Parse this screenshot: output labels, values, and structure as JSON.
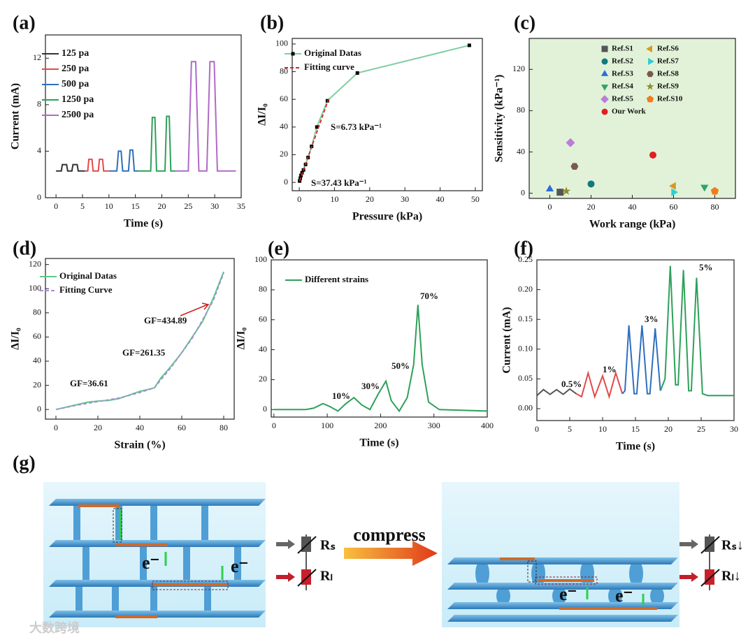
{
  "chart_data": [
    {
      "type": "line",
      "label": "(a)",
      "xlabel": "Time (s)",
      "ylabel": "Current (mA)",
      "xlim": [
        -2,
        35
      ],
      "xticks": [
        0,
        5,
        10,
        15,
        20,
        25,
        30,
        35
      ],
      "ylim": [
        0,
        14
      ],
      "yticks": [
        0,
        4,
        8,
        12
      ],
      "series": [
        {
          "name": "125 pa",
          "color": "#333333",
          "x": [
            0,
            1,
            1.2,
            2,
            2.2,
            3,
            3.2,
            4,
            4.2,
            5.5
          ],
          "values": [
            2.3,
            2.3,
            2.85,
            2.85,
            2.3,
            2.3,
            2.85,
            2.85,
            2.3,
            2.3
          ]
        },
        {
          "name": "250 pa",
          "color": "#e34a4a",
          "x": [
            5.5,
            6,
            6.2,
            6.8,
            7,
            8,
            8.2,
            8.8,
            9,
            10
          ],
          "values": [
            2.3,
            2.3,
            3.3,
            3.3,
            2.3,
            2.3,
            3.3,
            3.3,
            2.3,
            2.3
          ]
        },
        {
          "name": "500 pa",
          "color": "#2e6fbf",
          "x": [
            10,
            11.5,
            11.8,
            12.3,
            12.6,
            13.7,
            14,
            14.5,
            14.8,
            15.5
          ],
          "values": [
            2.3,
            2.3,
            4.0,
            4.0,
            2.3,
            2.3,
            4.1,
            4.1,
            2.3,
            2.3
          ]
        },
        {
          "name": "1250 pa",
          "color": "#2ea05a",
          "x": [
            15.5,
            17.9,
            18.2,
            18.7,
            19,
            20.6,
            20.9,
            21.4,
            21.7,
            22.5
          ],
          "values": [
            2.3,
            2.3,
            6.9,
            6.9,
            2.3,
            2.3,
            7.0,
            7.0,
            2.3,
            2.3
          ]
        },
        {
          "name": "2500 pa",
          "color": "#b06ac8",
          "x": [
            22.5,
            25,
            25.6,
            26.4,
            27,
            28.5,
            29.1,
            29.9,
            30.5,
            34
          ],
          "values": [
            2.3,
            2.3,
            11.7,
            11.7,
            2.3,
            2.3,
            11.7,
            11.7,
            2.3,
            2.3
          ]
        }
      ]
    },
    {
      "type": "line",
      "label": "(b)",
      "xlabel": "Pressure (kPa)",
      "ylabel": "ΔI/I₀",
      "xlim": [
        -2,
        52
      ],
      "xticks": [
        0,
        10,
        20,
        30,
        40,
        50
      ],
      "ylim": [
        -6,
        104
      ],
      "yticks": [
        0,
        20,
        40,
        60,
        80,
        100
      ],
      "annotations": [
        "S=6.73 kPa⁻¹",
        "S=37.43 kPa⁻¹"
      ],
      "series": [
        {
          "name": "Original Datas",
          "color": "#7fcf9f",
          "marker": "square",
          "marker_color": "#000000",
          "x": [
            0.1,
            0.3,
            0.5,
            0.8,
            1.2,
            1.8,
            2.5,
            3.5,
            5,
            8,
            16.5,
            48.3
          ],
          "values": [
            1,
            3,
            5,
            7,
            9,
            13,
            18,
            26,
            40,
            59,
            79,
            99
          ]
        },
        {
          "name": "Fitting curve",
          "color": "#d62728",
          "dash": true,
          "x": [
            0.1,
            8.3
          ],
          "values": [
            1,
            60
          ]
        }
      ]
    },
    {
      "type": "scatter",
      "label": "(c)",
      "xlabel": "Work range (kPa)",
      "ylabel": "Sensitivity (kPa⁻¹)",
      "plot_background": "#e2f2d9",
      "xlim": [
        -10,
        90
      ],
      "xticks": [
        0,
        20,
        40,
        60,
        80
      ],
      "ylim": [
        -5,
        150
      ],
      "yticks": [
        0,
        40,
        80,
        120
      ],
      "series": [
        {
          "name": "Ref.S1",
          "color": "#555555",
          "marker": "square",
          "x": [
            5
          ],
          "values": [
            1
          ]
        },
        {
          "name": "Ref.S2",
          "color": "#137a7a",
          "marker": "circle",
          "x": [
            20
          ],
          "values": [
            9
          ]
        },
        {
          "name": "Ref.S3",
          "color": "#2a6fd6",
          "marker": "triangle-up",
          "x": [
            0
          ],
          "values": [
            4
          ]
        },
        {
          "name": "Ref.S4",
          "color": "#2fa36b",
          "marker": "triangle-down",
          "x": [
            75
          ],
          "values": [
            6
          ]
        },
        {
          "name": "Ref.S5",
          "color": "#b77fd6",
          "marker": "diamond",
          "x": [
            10
          ],
          "values": [
            49
          ]
        },
        {
          "name": "Ref.S6",
          "color": "#d69a1f",
          "marker": "triangle-left",
          "x": [
            60
          ],
          "values": [
            7
          ]
        },
        {
          "name": "Ref.S7",
          "color": "#2ccfcf",
          "marker": "triangle-right",
          "x": [
            60
          ],
          "values": [
            1
          ]
        },
        {
          "name": "Ref.S8",
          "color": "#7a5a4a",
          "marker": "hexagon",
          "x": [
            12
          ],
          "values": [
            26
          ]
        },
        {
          "name": "Ref.S9",
          "color": "#8c8c2a",
          "marker": "star",
          "x": [
            8
          ],
          "values": [
            2
          ]
        },
        {
          "name": "Ref.S10",
          "color": "#f07c1a",
          "marker": "pentagon",
          "x": [
            80
          ],
          "values": [
            2
          ]
        },
        {
          "name": "Our Work",
          "color": "#e02020",
          "marker": "circle",
          "x": [
            50
          ],
          "values": [
            37
          ]
        }
      ]
    },
    {
      "type": "line",
      "label": "(d)",
      "xlabel": "Strain (%)",
      "ylabel": "ΔI/I₀",
      "xlim": [
        -5,
        85
      ],
      "xticks": [
        0,
        20,
        40,
        60,
        80
      ],
      "ylim": [
        -8,
        125
      ],
      "yticks": [
        0,
        20,
        40,
        60,
        80,
        100,
        120
      ],
      "annotations": [
        "GF=36.61",
        "GF=261.35",
        "GF=434.89"
      ],
      "series": [
        {
          "name": "Original Datas",
          "color": "#5cc98a",
          "x": [
            0,
            5,
            10,
            15,
            20,
            25,
            30,
            35,
            40,
            45,
            47,
            50,
            55,
            60,
            65,
            70,
            75,
            80
          ],
          "values": [
            0,
            2,
            4,
            6,
            7,
            7.5,
            9,
            12,
            15,
            17,
            18,
            26,
            36,
            47,
            60,
            73,
            92,
            114
          ]
        },
        {
          "name": "Fitting Curve",
          "color": "#a98ad6",
          "dash": true,
          "x": [
            0,
            10,
            20,
            30,
            40,
            47,
            55,
            65,
            75,
            80
          ],
          "values": [
            0,
            3.5,
            6.5,
            9.5,
            14,
            18,
            35,
            59,
            90,
            113
          ]
        }
      ]
    },
    {
      "type": "line",
      "label": "(e)",
      "xlabel": "Time (s)",
      "ylabel": "ΔI/I₀",
      "xlim": [
        -5,
        400
      ],
      "xticks": [
        0,
        100,
        200,
        300,
        400
      ],
      "ylim": [
        -5,
        100
      ],
      "yticks": [
        0,
        20,
        40,
        60,
        80,
        100
      ],
      "annotations": [
        "10%",
        "30%",
        "50%",
        "70%"
      ],
      "series": [
        {
          "name": "Different strains",
          "color": "#2ea05a",
          "x": [
            0,
            60,
            75,
            92,
            105,
            120,
            135,
            150,
            165,
            180,
            195,
            210,
            220,
            235,
            250,
            262,
            270,
            278,
            290,
            310,
            400
          ],
          "values": [
            0,
            0,
            1,
            4,
            2,
            -1,
            4,
            8,
            3,
            0,
            10,
            19,
            6,
            -1,
            8,
            30,
            70,
            30,
            5,
            0,
            -1
          ]
        }
      ]
    },
    {
      "type": "line",
      "label": "(f)",
      "xlabel": "Time (s)",
      "ylabel": "Current (mA)",
      "xlim": [
        0,
        30
      ],
      "xticks": [
        0,
        5,
        10,
        15,
        20,
        25,
        30
      ],
      "ylim": [
        -0.02,
        0.25
      ],
      "yticks": [
        {
          "value": 0,
          "label": "0.00"
        },
        {
          "value": 0.05,
          "label": "0.05"
        },
        {
          "value": 0.1,
          "label": "0.10"
        },
        {
          "value": 0.15,
          "label": "0.15"
        },
        {
          "value": 0.2,
          "label": "0.20"
        },
        {
          "value": 0.25,
          "label": "0.25"
        }
      ],
      "annotations": [
        "0.5%",
        "1%",
        "3%",
        "5%"
      ],
      "series": [
        {
          "color": "#555555",
          "x": [
            0,
            1,
            2,
            3,
            4,
            5,
            6
          ],
          "values": [
            0.022,
            0.032,
            0.024,
            0.032,
            0.024,
            0.033,
            0.025
          ]
        },
        {
          "color": "#e34a4a",
          "x": [
            6,
            6.8,
            7.8,
            8.8,
            10,
            11,
            12,
            13
          ],
          "values": [
            0.025,
            0.02,
            0.06,
            0.02,
            0.055,
            0.02,
            0.06,
            0.025
          ]
        },
        {
          "color": "#2e6fbf",
          "x": [
            13,
            13.4,
            14,
            14.8,
            15.2,
            16,
            16.8,
            17.2,
            18,
            18.8
          ],
          "values": [
            0.025,
            0.03,
            0.14,
            0.025,
            0.025,
            0.14,
            0.025,
            0.025,
            0.135,
            0.03
          ]
        },
        {
          "color": "#2ea05a",
          "x": [
            18.8,
            19.5,
            20.3,
            21.1,
            21.5,
            22.3,
            23.1,
            23.5,
            24.3,
            25.2,
            26,
            30
          ],
          "values": [
            0.03,
            0.05,
            0.24,
            0.04,
            0.04,
            0.233,
            0.03,
            0.03,
            0.22,
            0.025,
            0.022,
            0.022
          ]
        }
      ]
    }
  ],
  "diagram": {
    "label": "(g)",
    "action": "compress",
    "electron": "e⁻",
    "left": {
      "rs": "Rₛ",
      "rl": "Rₗ"
    },
    "right": {
      "rs": "Rₛ↓",
      "rl": "Rₗ↓"
    },
    "watermark": "大数跨境"
  }
}
